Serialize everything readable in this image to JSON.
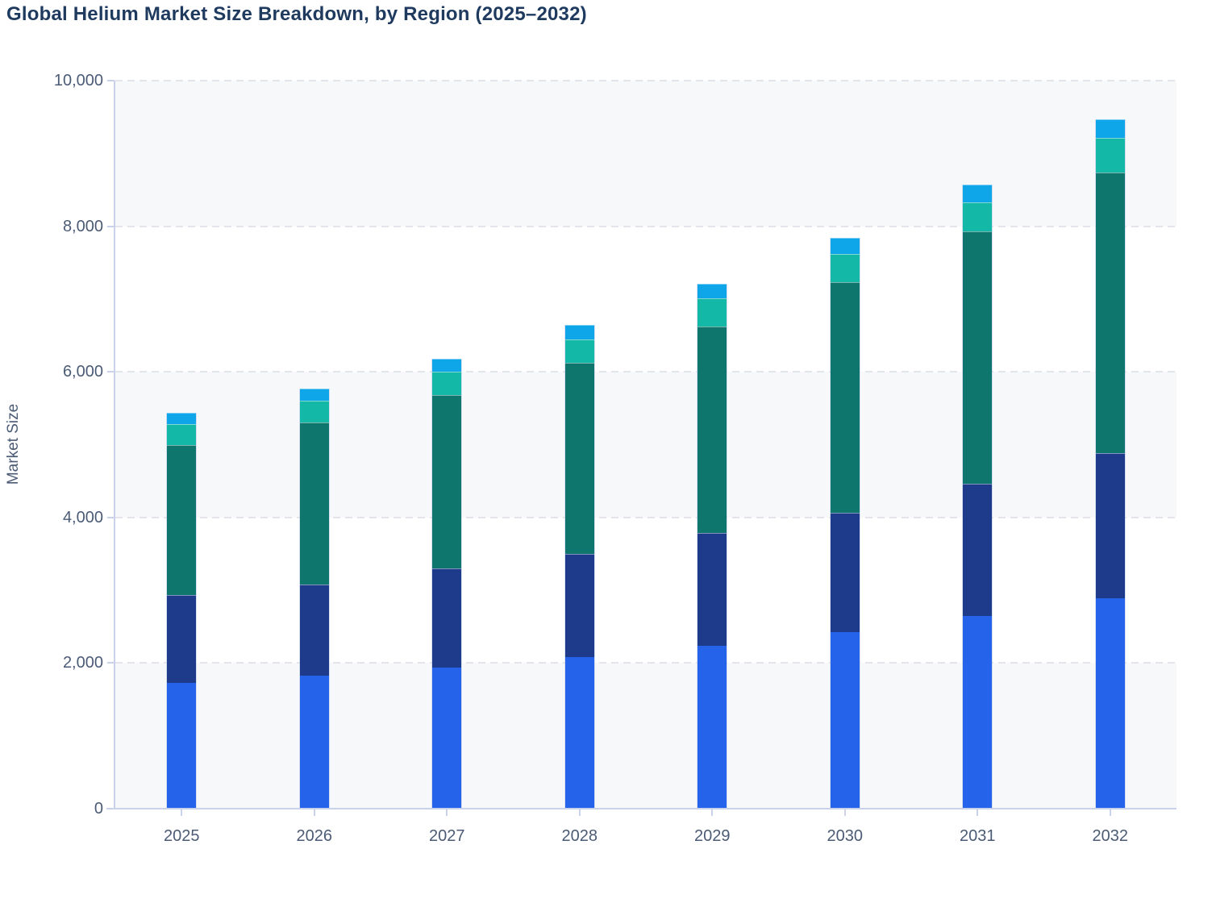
{
  "page": {
    "background": "#ffffff"
  },
  "chart_data": {
    "type": "bar",
    "stacked": true,
    "title": "Global Helium Market Size Breakdown, by Region (2025–2032)",
    "ylabel": "Market Size",
    "xlabel": "",
    "ylim": [
      0,
      10000
    ],
    "y_ticks": [
      0,
      2000,
      4000,
      6000,
      8000,
      10000
    ],
    "y_tick_labels": [
      "0",
      "2,000",
      "4,000",
      "6,000",
      "8,000",
      "10,000"
    ],
    "categories": [
      "2025",
      "2026",
      "2027",
      "2028",
      "2029",
      "2030",
      "2031",
      "2032"
    ],
    "legend": {
      "visible": false
    },
    "grid": {
      "horizontal": true,
      "style": "dashed",
      "alternating_bands": true
    },
    "series": [
      {
        "name": "blue-base-segment",
        "color": "#2563eb",
        "values": [
          1725,
          1830,
          1935,
          2080,
          2235,
          2430,
          2645,
          2895
        ]
      },
      {
        "name": "dark-navy-segment",
        "color": "#1e3a8a",
        "values": [
          1210,
          1250,
          1365,
          1420,
          1550,
          1635,
          1820,
          1985
        ]
      },
      {
        "name": "dark-teal-segment",
        "color": "#0f766e",
        "values": [
          2060,
          2220,
          2385,
          2620,
          2840,
          3170,
          3460,
          3860
        ]
      },
      {
        "name": "light-teal-segment",
        "color": "#14b8a6",
        "values": [
          285,
          305,
          315,
          330,
          385,
          385,
          400,
          475
        ]
      },
      {
        "name": "sky-blue-segment",
        "color": "#0ea5e9",
        "values": [
          160,
          170,
          185,
          190,
          205,
          220,
          245,
          255
        ]
      }
    ]
  },
  "style_colors": {
    "title_text": "#1f3a5f",
    "axis_text": "#4b5b76",
    "axis_line": "#c9d2ea",
    "gridline": "#e3e5ea",
    "band_shade": "#f7f8fa"
  }
}
